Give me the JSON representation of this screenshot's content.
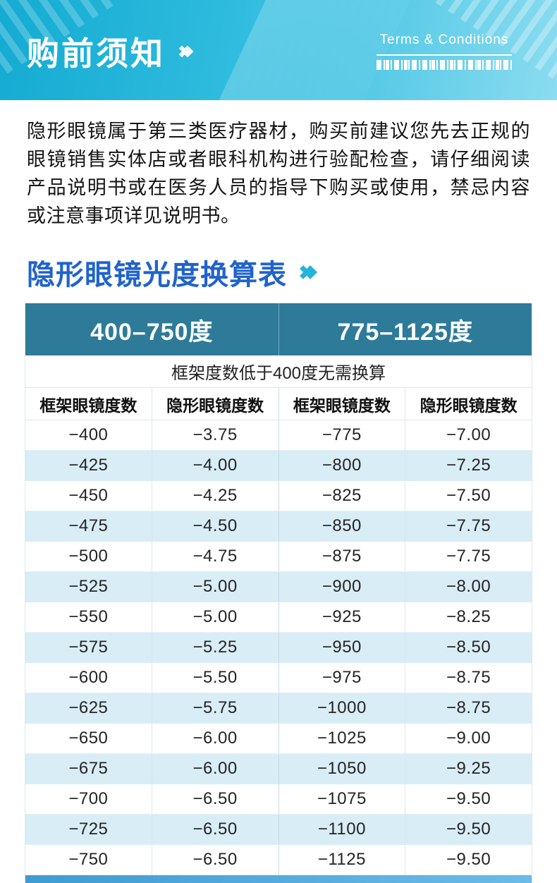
{
  "header": {
    "title": "购前须知",
    "terms_label": "Terms & Conditions",
    "colors": {
      "banner_start": "#14abd2",
      "banner_end": "#8bdcf0"
    }
  },
  "notice": {
    "text": "隐形眼镜属于第三类医疗器材，购买前建议您先去正规的眼镜销售实体店或者眼科机构进行验配检查，请仔细阅读产品说明书或在医务人员的指导下购买或使用，禁忌内容或注意事项详见说明书。"
  },
  "section": {
    "title": "隐形眼镜光度换算表"
  },
  "table": {
    "range_headers": [
      "400–750度",
      "775–1125度"
    ],
    "note": "框架度数低于400度无需换算",
    "col_headers": [
      "框架眼镜度数",
      "隐形眼镜度数",
      "框架眼镜度数",
      "隐形眼镜度数"
    ],
    "header_bg": "#2e7b99",
    "alt_row_bg": "#d9edf6",
    "rows": [
      [
        "−400",
        "−3.75",
        "−775",
        "−7.00"
      ],
      [
        "−425",
        "−4.00",
        "−800",
        "−7.25"
      ],
      [
        "−450",
        "−4.25",
        "−825",
        "−7.50"
      ],
      [
        "−475",
        "−4.50",
        "−850",
        "−7.75"
      ],
      [
        "−500",
        "−4.75",
        "−875",
        "−7.75"
      ],
      [
        "−525",
        "−5.00",
        "−900",
        "−8.00"
      ],
      [
        "−550",
        "−5.00",
        "−925",
        "−8.25"
      ],
      [
        "−575",
        "−5.25",
        "−950",
        "−8.50"
      ],
      [
        "−600",
        "−5.50",
        "−975",
        "−8.75"
      ],
      [
        "−625",
        "−5.75",
        "−1000",
        "−8.75"
      ],
      [
        "−650",
        "−6.00",
        "−1025",
        "−9.00"
      ],
      [
        "−675",
        "−6.00",
        "−1050",
        "−9.25"
      ],
      [
        "−700",
        "−6.50",
        "−1075",
        "−9.50"
      ],
      [
        "−725",
        "−6.50",
        "−1100",
        "−9.50"
      ],
      [
        "−750",
        "−6.50",
        "−1125",
        "−9.50"
      ]
    ]
  }
}
